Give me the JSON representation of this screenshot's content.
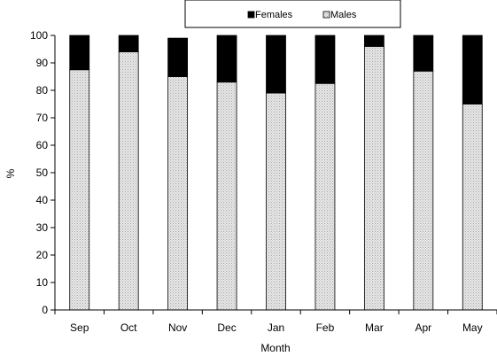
{
  "chart_data": {
    "type": "bar",
    "stacked": true,
    "categories": [
      "Sep",
      "Oct",
      "Nov",
      "Dec",
      "Jan",
      "Feb",
      "Mar",
      "Apr",
      "May"
    ],
    "series": [
      {
        "name": "Males",
        "values": [
          87.5,
          94,
          85,
          83,
          79,
          82.5,
          96,
          87,
          75
        ],
        "color": "#d9d9d9",
        "pattern": "dotted"
      },
      {
        "name": "Females",
        "values": [
          12.5,
          6,
          14,
          17,
          21,
          17.5,
          4,
          13,
          25
        ],
        "color": "#000000",
        "pattern": "solid"
      }
    ],
    "legend_order": [
      "Females",
      "Males"
    ],
    "xlabel": "Month",
    "ylabel": "%",
    "ylim": [
      0,
      100
    ],
    "yticks": [
      0,
      10,
      20,
      30,
      40,
      50,
      60,
      70,
      80,
      90,
      100
    ],
    "grid": false,
    "legend_position": "top-center"
  }
}
